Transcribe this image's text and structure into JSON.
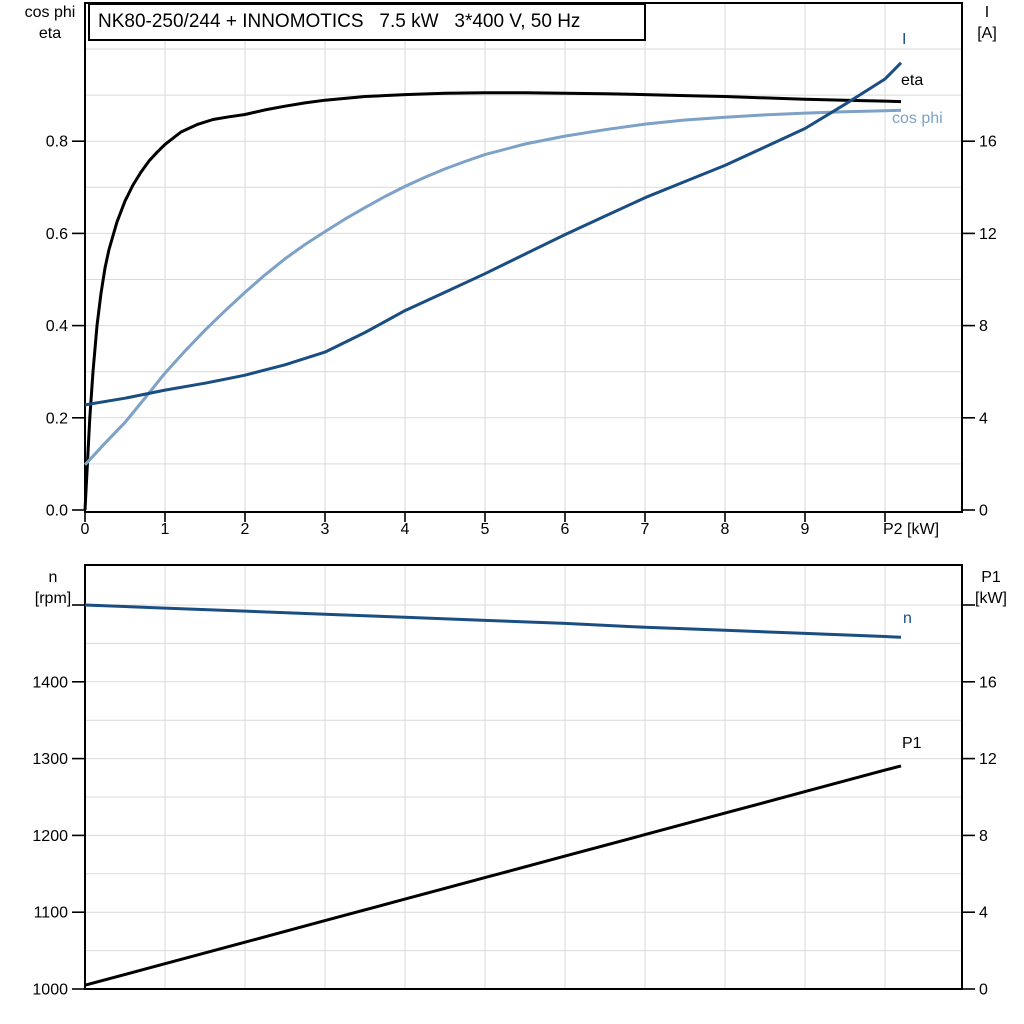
{
  "title": "NK80-250/244 + INNOMOTICS   7.5 kW   3*400 V, 50 Hz",
  "colors": {
    "dark_blue": "#1a4e82",
    "light_blue": "#7da1c7",
    "black": "#000000",
    "grid": "#d9d9d9",
    "frame": "#000000",
    "background": "#ffffff"
  },
  "labels": {
    "top_left_axis": {
      "line1": "cos phi",
      "line2": "eta"
    },
    "top_right_axis": {
      "line1": "I",
      "line2": "[A]"
    },
    "bottom_left_axis": {
      "line1": "n",
      "line2": "[rpm]"
    },
    "bottom_right_axis": {
      "line1": "P1",
      "line2": "[kW]"
    },
    "curve_labels": {
      "current": "I",
      "eta": "eta",
      "cos_phi": "cos phi",
      "speed": "n",
      "p1": "P1"
    }
  },
  "chart_data": [
    {
      "type": "line",
      "title": "NK80-250/244 + INNOMOTICS   7.5 kW   3*400 V, 50 Hz",
      "x_axis": {
        "label": "P2 [kW]",
        "min": 0,
        "max": 10.96,
        "tick_values": [
          0,
          1,
          2,
          3,
          4,
          5,
          6,
          7,
          8,
          9,
          10
        ],
        "tick_labels": [
          "0",
          "1",
          "2",
          "3",
          "4",
          "5",
          "6",
          "7",
          "8",
          "9",
          "P2 [kW]"
        ],
        "grid_values": [
          1,
          2,
          3,
          4,
          5,
          6,
          7,
          8,
          9,
          10
        ]
      },
      "y_left_axis": {
        "labels": [
          "cos phi",
          "eta"
        ],
        "min": 0,
        "max": 1.1,
        "tick_values": [
          0,
          0.2,
          0.4,
          0.6,
          0.8
        ],
        "tick_labels": [
          "0.0",
          "0.2",
          "0.4",
          "0.6",
          "0.8"
        ],
        "extra_tick_values": [],
        "grid_values": [
          0.1,
          0.2,
          0.3,
          0.4,
          0.5,
          0.6,
          0.7,
          0.8,
          0.9,
          1.0
        ]
      },
      "y_right_axis": {
        "labels": [
          "I",
          "[A]"
        ],
        "min": 0,
        "max": 22,
        "tick_values": [
          0,
          4,
          8,
          12,
          16
        ],
        "tick_labels": [
          "0",
          "4",
          "8",
          "12",
          "16"
        ],
        "extra_tick_values": []
      },
      "legend_position": "right-of-curve-ends",
      "grid": true,
      "series": [
        {
          "name": "eta",
          "axis": "left",
          "color_key": "black",
          "points": [
            [
              0,
              0
            ],
            [
              0.03,
              0.1
            ],
            [
              0.06,
              0.2
            ],
            [
              0.1,
              0.3
            ],
            [
              0.15,
              0.4
            ],
            [
              0.2,
              0.47
            ],
            [
              0.25,
              0.525
            ],
            [
              0.3,
              0.565
            ],
            [
              0.4,
              0.625
            ],
            [
              0.5,
              0.67
            ],
            [
              0.6,
              0.705
            ],
            [
              0.7,
              0.733
            ],
            [
              0.8,
              0.757
            ],
            [
              0.9,
              0.776
            ],
            [
              1,
              0.793
            ],
            [
              1.2,
              0.82
            ],
            [
              1.4,
              0.836
            ],
            [
              1.6,
              0.847
            ],
            [
              1.8,
              0.853
            ],
            [
              2,
              0.858
            ],
            [
              2.25,
              0.868
            ],
            [
              2.5,
              0.876
            ],
            [
              2.75,
              0.883
            ],
            [
              3,
              0.889
            ],
            [
              3.5,
              0.897
            ],
            [
              4,
              0.901
            ],
            [
              4.5,
              0.904
            ],
            [
              5,
              0.905
            ],
            [
              5.5,
              0.905
            ],
            [
              6,
              0.904
            ],
            [
              6.5,
              0.903
            ],
            [
              7,
              0.901
            ],
            [
              7.5,
              0.899
            ],
            [
              8,
              0.897
            ],
            [
              8.5,
              0.894
            ],
            [
              9,
              0.891
            ],
            [
              9.5,
              0.889
            ],
            [
              10,
              0.887
            ],
            [
              10.2,
              0.886
            ]
          ]
        },
        {
          "name": "cos phi",
          "axis": "left",
          "color_key": "light_blue",
          "points": [
            [
              0,
              0.098
            ],
            [
              0.25,
              0.145
            ],
            [
              0.5,
              0.19
            ],
            [
              0.75,
              0.243
            ],
            [
              1,
              0.297
            ],
            [
              1.25,
              0.345
            ],
            [
              1.5,
              0.39
            ],
            [
              1.75,
              0.432
            ],
            [
              2,
              0.472
            ],
            [
              2.25,
              0.51
            ],
            [
              2.5,
              0.545
            ],
            [
              2.75,
              0.576
            ],
            [
              3,
              0.604
            ],
            [
              3.25,
              0.631
            ],
            [
              3.5,
              0.656
            ],
            [
              3.75,
              0.68
            ],
            [
              4,
              0.702
            ],
            [
              4.25,
              0.722
            ],
            [
              4.5,
              0.74
            ],
            [
              4.75,
              0.756
            ],
            [
              5,
              0.771
            ],
            [
              5.5,
              0.794
            ],
            [
              6,
              0.811
            ],
            [
              6.5,
              0.825
            ],
            [
              7,
              0.837
            ],
            [
              7.5,
              0.846
            ],
            [
              8,
              0.852
            ],
            [
              8.5,
              0.857
            ],
            [
              9,
              0.861
            ],
            [
              9.5,
              0.864
            ],
            [
              10,
              0.866
            ],
            [
              10.2,
              0.867
            ]
          ]
        },
        {
          "name": "I",
          "axis": "right",
          "color_key": "dark_blue",
          "points": [
            [
              0,
              4.56
            ],
            [
              0.5,
              4.85
            ],
            [
              1,
              5.2
            ],
            [
              1.5,
              5.5
            ],
            [
              2,
              5.85
            ],
            [
              2.5,
              6.3
            ],
            [
              3,
              6.85
            ],
            [
              3.5,
              7.7
            ],
            [
              4,
              8.65
            ],
            [
              4.5,
              9.45
            ],
            [
              5,
              10.25
            ],
            [
              5.5,
              11.1
            ],
            [
              6,
              11.95
            ],
            [
              6.5,
              12.75
            ],
            [
              7,
              13.55
            ],
            [
              7.5,
              14.25
            ],
            [
              8,
              14.95
            ],
            [
              8.5,
              15.75
            ],
            [
              9,
              16.55
            ],
            [
              9.5,
              17.6
            ],
            [
              10,
              18.7
            ],
            [
              10.2,
              19.4
            ]
          ]
        }
      ]
    },
    {
      "type": "line",
      "x_axis": {
        "label": "",
        "min": 0,
        "max": 10.96,
        "tick_values": [],
        "tick_labels": [],
        "grid_values": [
          1,
          2,
          3,
          4,
          5,
          6,
          7,
          8,
          9,
          10
        ]
      },
      "y_left_axis": {
        "labels": [
          "n",
          "[rpm]"
        ],
        "min": 1000,
        "max": 1552,
        "tick_values": [
          1000,
          1100,
          1200,
          1300,
          1400
        ],
        "tick_labels": [
          "1000",
          "1100",
          "1200",
          "1300",
          "1400"
        ],
        "extra_tick_values": [
          1500
        ],
        "grid_values": [
          1050,
          1100,
          1150,
          1200,
          1250,
          1300,
          1350,
          1400,
          1450,
          1500
        ]
      },
      "y_right_axis": {
        "labels": [
          "P1",
          "[kW]"
        ],
        "min": 0,
        "max": 22.1,
        "tick_values": [
          0,
          4,
          8,
          12,
          16
        ],
        "tick_labels": [
          "0",
          "4",
          "8",
          "12",
          "16"
        ],
        "extra_tick_values": [
          20
        ]
      },
      "grid": true,
      "series": [
        {
          "name": "n",
          "axis": "left",
          "color_key": "dark_blue",
          "points": [
            [
              0,
              1500
            ],
            [
              1,
              1496
            ],
            [
              2,
              1492
            ],
            [
              3,
              1488
            ],
            [
              4,
              1484
            ],
            [
              5,
              1480
            ],
            [
              6,
              1476
            ],
            [
              7,
              1471
            ],
            [
              8,
              1467
            ],
            [
              9,
              1463
            ],
            [
              10,
              1459
            ],
            [
              10.2,
              1458
            ]
          ]
        },
        {
          "name": "P1",
          "axis": "right",
          "color_key": "black",
          "points": [
            [
              0,
              0.2
            ],
            [
              1,
              1.32
            ],
            [
              2,
              2.44
            ],
            [
              3,
              3.56
            ],
            [
              4,
              4.68
            ],
            [
              5,
              5.8
            ],
            [
              6,
              6.92
            ],
            [
              7,
              8.04
            ],
            [
              8,
              9.16
            ],
            [
              9,
              10.28
            ],
            [
              10,
              11.4
            ],
            [
              10.2,
              11.62
            ]
          ]
        }
      ]
    }
  ]
}
